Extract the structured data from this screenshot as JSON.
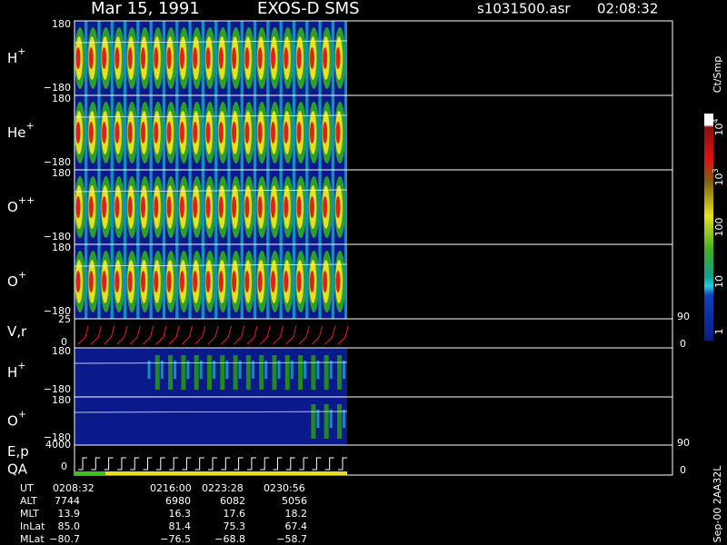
{
  "header": {
    "date": "Mar 15, 1991",
    "instrument": "EXOS-D SMS",
    "file": "s1031500.asr",
    "time": "02:08:32"
  },
  "ion_panels": [
    {
      "label": "H",
      "charge": "+",
      "top": "180",
      "bottom": "−180"
    },
    {
      "label": "He",
      "charge": "+",
      "top": "180",
      "bottom": "−180"
    },
    {
      "label": "O",
      "charge": "++",
      "top": "180",
      "bottom": "−180"
    },
    {
      "label": "O",
      "charge": "+",
      "top": "180",
      "bottom": "−180"
    }
  ],
  "vr_panel": {
    "label": "V,r",
    "top": "25",
    "bottom": "0",
    "right_top": "90",
    "right_bottom": "0"
  },
  "count_panels": [
    {
      "label": "H",
      "charge": "+",
      "top": "180",
      "bottom": "−180"
    },
    {
      "label": "O",
      "charge": "+",
      "top": "180",
      "bottom": "−180"
    }
  ],
  "ep_panel": {
    "label": "E,p",
    "top": "4000",
    "bottom": "0",
    "qa": "QA",
    "right_top": "90",
    "right_bottom": "0"
  },
  "colorbar": {
    "unit": "Ct/Smp",
    "labels": [
      {
        "base": "10",
        "exp": "4"
      },
      {
        "base": "10",
        "exp": "3"
      },
      {
        "base": "100",
        "exp": ""
      },
      {
        "base": "10",
        "exp": ""
      },
      {
        "base": "1",
        "exp": ""
      }
    ]
  },
  "footer": {
    "rows": [
      {
        "label": "UT",
        "values": [
          "0208:32",
          "0216:00",
          "0223:28",
          "0230:56"
        ]
      },
      {
        "label": "ALT",
        "values": [
          "7744",
          "6980",
          "6082",
          "5056"
        ]
      },
      {
        "label": "MLT",
        "values": [
          "13.9",
          "16.3",
          "17.6",
          "18.2"
        ]
      },
      {
        "label": "InLat",
        "values": [
          "85.0",
          "81.4",
          "75.3",
          "67.4"
        ]
      },
      {
        "label": "MLat",
        "values": [
          "−80.7",
          "−76.5",
          "−68.8",
          "−58.7"
        ]
      }
    ],
    "stamp": "Sep-00 2AA32L"
  }
}
